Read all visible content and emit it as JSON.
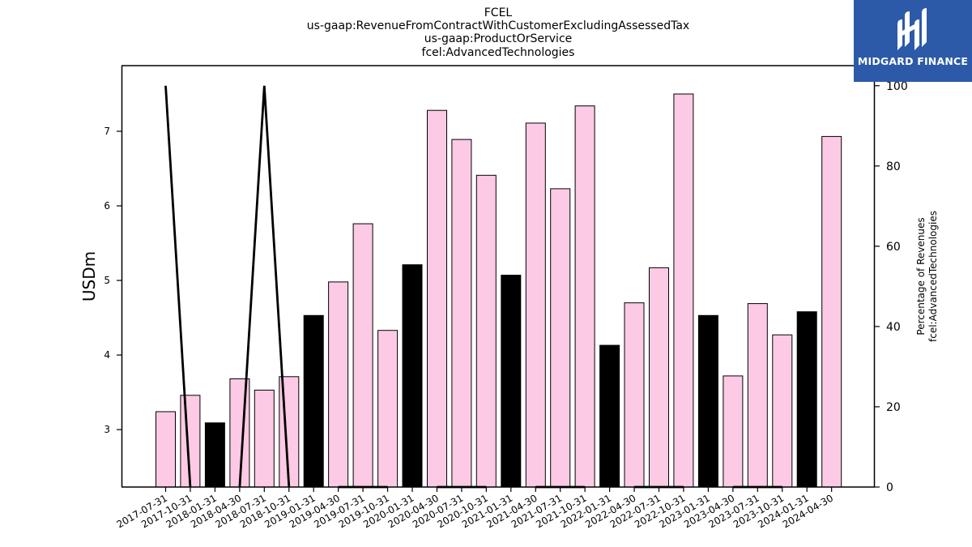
{
  "chart_data": {
    "type": "bar",
    "title_lines": [
      "FCEL",
      "us-gaap:RevenueFromContractWithCustomerExcludingAssessedTax",
      "us-gaap:ProductOrService",
      "fcel:AdvancedTechnologies"
    ],
    "ylabel": "USDm",
    "ylabel_right": [
      "Percentage of Revenues",
      "fcel:AdvancedTechnologies"
    ],
    "ylim": [
      2.23,
      7.88
    ],
    "yticks": [
      3,
      4,
      5,
      6,
      7
    ],
    "ylim_right": [
      0,
      105
    ],
    "yticks_right": [
      0,
      20,
      40,
      60,
      80,
      100
    ],
    "categories": [
      "2017-07-31",
      "2017-10-31",
      "2018-01-31",
      "2018-04-30",
      "2018-07-31",
      "2018-10-31",
      "2019-01-31",
      "2019-04-30",
      "2019-07-31",
      "2019-10-31",
      "2020-01-31",
      "2020-04-30",
      "2020-07-31",
      "2020-10-31",
      "2021-01-31",
      "2021-04-30",
      "2021-07-31",
      "2021-10-31",
      "2022-01-31",
      "2022-04-30",
      "2022-07-31",
      "2022-10-31",
      "2023-01-31",
      "2023-04-30",
      "2023-07-31",
      "2023-10-31",
      "2024-01-31",
      "2024-04-30"
    ],
    "series": [
      {
        "type": "bar",
        "values": [
          3.24,
          3.46,
          3.09,
          3.68,
          3.53,
          3.71,
          4.53,
          4.98,
          5.76,
          4.33,
          5.21,
          7.28,
          6.89,
          6.41,
          5.07,
          7.11,
          6.23,
          7.34,
          4.13,
          4.7,
          5.17,
          7.5,
          4.53,
          3.72,
          4.69,
          4.27,
          4.58,
          6.93
        ],
        "fiscal_year_end": [
          false,
          false,
          true,
          false,
          false,
          false,
          true,
          false,
          false,
          false,
          true,
          false,
          false,
          false,
          true,
          false,
          false,
          false,
          true,
          false,
          false,
          false,
          true,
          false,
          false,
          false,
          true,
          false
        ]
      },
      {
        "type": "line",
        "axis": "right",
        "values": [
          100,
          0,
          null,
          0,
          100,
          0,
          null,
          0,
          0,
          0,
          null,
          0,
          0,
          0,
          null,
          0,
          0,
          0,
          null,
          0,
          0,
          0,
          null,
          0,
          0,
          0,
          null,
          0
        ]
      }
    ],
    "colors": {
      "bar": "#fccae4",
      "bar_fiscal": "#000000",
      "bar_edge": "#000000",
      "line": "#000000"
    }
  },
  "logo": {
    "text": "MIDGARD FINANCE",
    "background": "#2c5aa8"
  }
}
